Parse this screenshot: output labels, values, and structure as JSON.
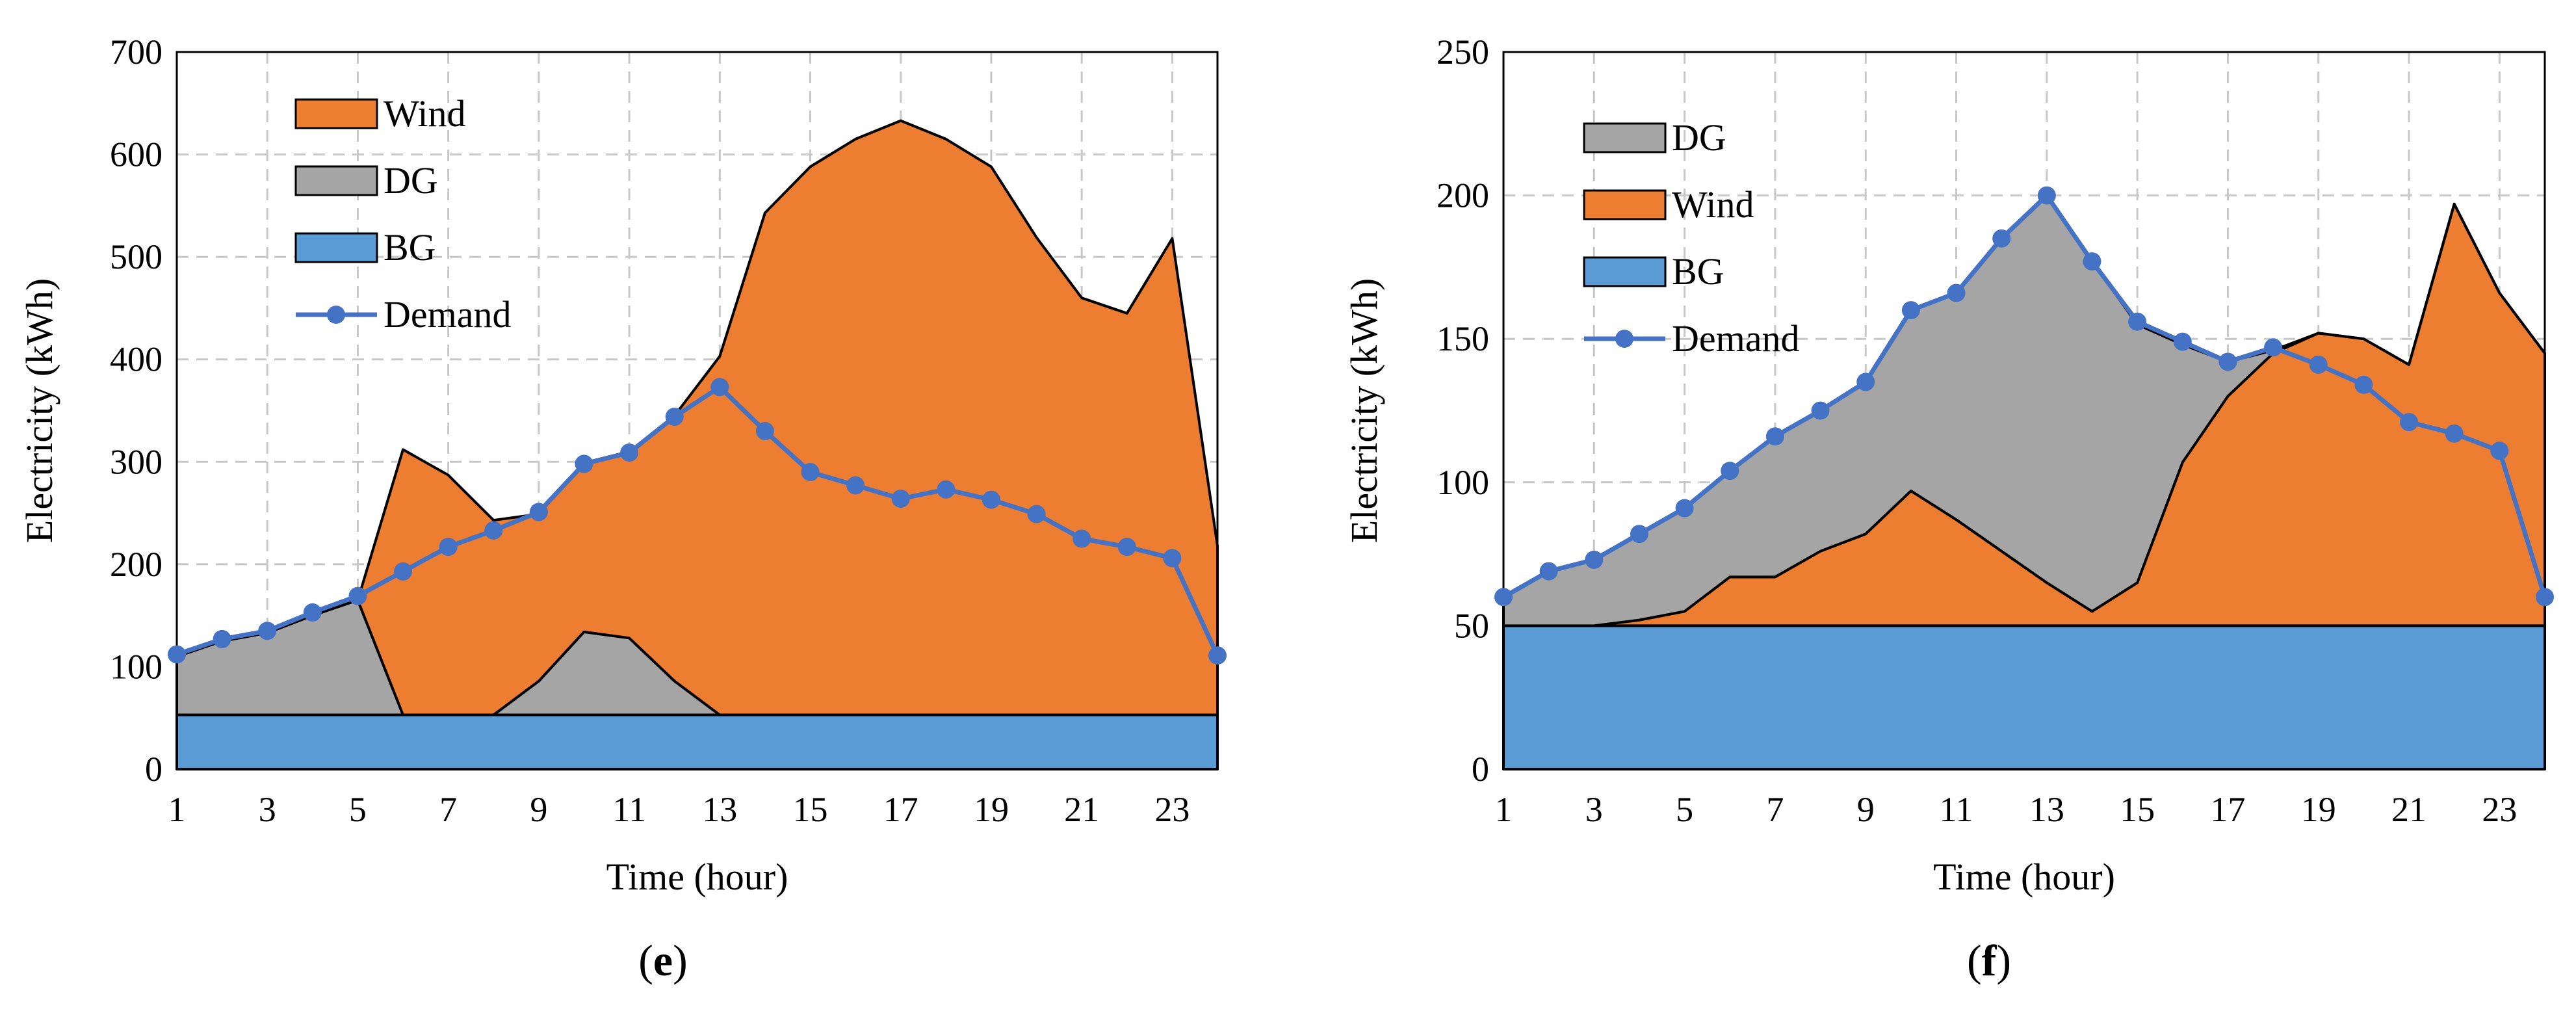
{
  "colors": {
    "bg": "#5B9BD5",
    "dg": "#A5A5A5",
    "wind": "#ED7D31",
    "demand": "#4472C4",
    "grid": "#C8C8C8",
    "outline": "#000000"
  },
  "chart_data": [
    {
      "type": "area",
      "stacking": "stacked",
      "panel": "e",
      "xlabel": "Time (hour)",
      "ylabel": "Electricity (kWh)",
      "ylim": [
        0,
        700
      ],
      "yticks": [
        0,
        100,
        200,
        300,
        400,
        500,
        600,
        700
      ],
      "xlim": [
        1,
        24
      ],
      "xticks": [
        1,
        3,
        5,
        7,
        9,
        11,
        13,
        15,
        17,
        19,
        21,
        23
      ],
      "x": [
        1,
        2,
        3,
        4,
        5,
        6,
        7,
        8,
        9,
        10,
        11,
        12,
        13,
        14,
        15,
        16,
        17,
        18,
        19,
        20,
        21,
        22,
        23,
        24
      ],
      "stack_order": [
        "BG",
        "DG",
        "Wind"
      ],
      "legend": [
        "Wind",
        "DG",
        "BG",
        "Demand"
      ],
      "series": [
        {
          "name": "BG",
          "values": [
            53,
            53,
            53,
            53,
            53,
            53,
            53,
            53,
            53,
            53,
            53,
            53,
            53,
            53,
            53,
            53,
            53,
            53,
            53,
            53,
            53,
            53,
            53,
            53
          ]
        },
        {
          "name": "DG",
          "values": [
            57,
            72,
            80,
            97,
            112,
            0,
            0,
            0,
            33,
            81,
            75,
            33,
            0,
            0,
            0,
            0,
            0,
            0,
            0,
            0,
            0,
            0,
            0,
            0
          ]
        },
        {
          "name": "Wind",
          "values": [
            0,
            0,
            0,
            0,
            0,
            259,
            234,
            190,
            163,
            165,
            182,
            259,
            350,
            490,
            535,
            562,
            580,
            562,
            535,
            466,
            407,
            392,
            465,
            165
          ]
        },
        {
          "name": "Demand",
          "type": "line",
          "values": [
            112,
            127,
            135,
            153,
            169,
            193,
            217,
            233,
            251,
            298,
            309,
            344,
            373,
            330,
            290,
            277,
            264,
            273,
            263,
            249,
            225,
            217,
            206,
            111
          ]
        }
      ]
    },
    {
      "type": "area",
      "stacking": "stacked",
      "panel": "f",
      "xlabel": "Time (hour)",
      "ylabel": "Electricity (kWh)",
      "ylim": [
        0,
        250
      ],
      "yticks": [
        0,
        50,
        100,
        150,
        200,
        250
      ],
      "xlim": [
        1,
        24
      ],
      "xticks": [
        1,
        3,
        5,
        7,
        9,
        11,
        13,
        15,
        17,
        19,
        21,
        23
      ],
      "x": [
        1,
        2,
        3,
        4,
        5,
        6,
        7,
        8,
        9,
        10,
        11,
        12,
        13,
        14,
        15,
        16,
        17,
        18,
        19,
        20,
        21,
        22,
        23,
        24
      ],
      "stack_order": [
        "BG",
        "Wind",
        "DG"
      ],
      "legend": [
        "DG",
        "Wind",
        "BG",
        "Demand"
      ],
      "series": [
        {
          "name": "BG",
          "values": [
            50,
            50,
            50,
            50,
            50,
            50,
            50,
            50,
            50,
            50,
            50,
            50,
            50,
            50,
            50,
            50,
            50,
            50,
            50,
            50,
            50,
            50,
            50,
            50
          ]
        },
        {
          "name": "Wind",
          "values": [
            0,
            0,
            0,
            2,
            5,
            17,
            17,
            26,
            32,
            47,
            37,
            26,
            15,
            5,
            15,
            57,
            80,
            95,
            102,
            100,
            91,
            147,
            116,
            95
          ]
        },
        {
          "name": "DG",
          "values": [
            10,
            19,
            23,
            30,
            36,
            37,
            49,
            49,
            53,
            63,
            79,
            109,
            135,
            122,
            90,
            41,
            12,
            1,
            0,
            0,
            0,
            0,
            0,
            0
          ]
        },
        {
          "name": "Demand",
          "type": "line",
          "values": [
            60,
            69,
            73,
            82,
            91,
            104,
            116,
            125,
            135,
            160,
            166,
            185,
            200,
            177,
            156,
            149,
            142,
            147,
            141,
            134,
            121,
            117,
            111,
            60
          ]
        }
      ]
    }
  ],
  "captions": [
    "(e)",
    "(f)"
  ]
}
